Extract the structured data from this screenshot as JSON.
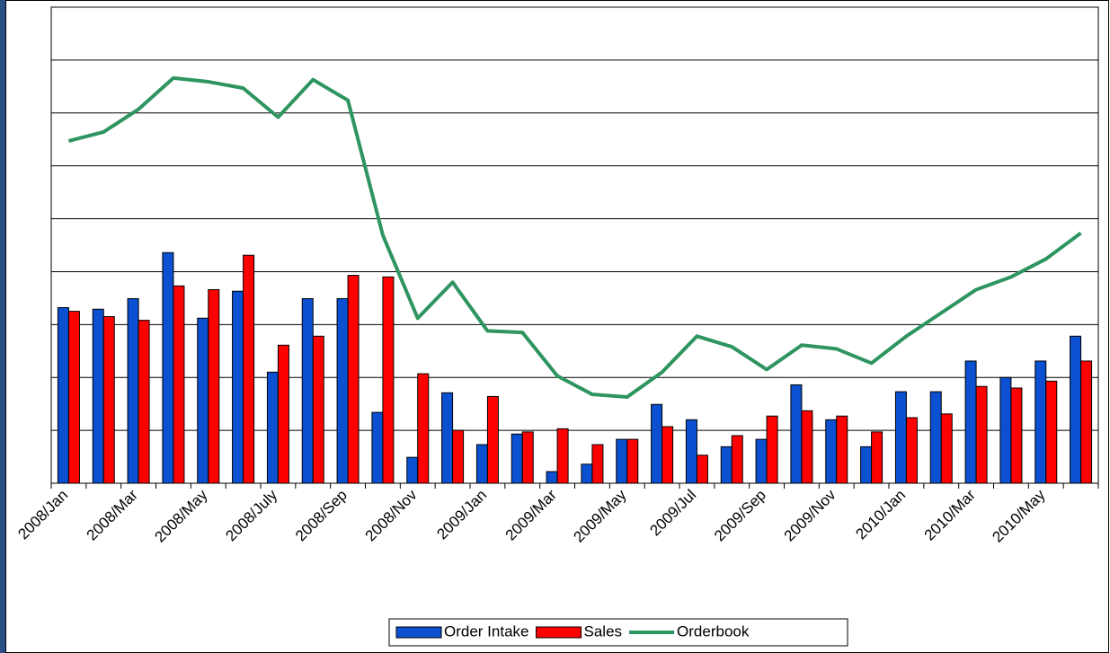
{
  "chart_data": {
    "type": "bar-line",
    "categories": [
      "2008/Jan",
      null,
      "2008/Mar",
      null,
      "2008/May",
      null,
      "2008/July",
      null,
      "2008/Sep",
      null,
      "2008/Nov",
      null,
      "2009/Jan",
      null,
      "2009/Mar",
      null,
      "2009/May",
      null,
      "2009/Jul",
      null,
      "2009/Sep",
      null,
      "2009/Nov",
      null,
      "2010/Jan",
      null,
      "2010/Mar",
      null,
      "2010/May",
      null
    ],
    "series": [
      {
        "name": "Order Intake",
        "kind": "bar",
        "color": "#0a50d0",
        "values": [
          3.32,
          3.29,
          3.49,
          4.36,
          3.12,
          3.63,
          2.1,
          3.49,
          3.49,
          1.34,
          0.49,
          1.71,
          0.73,
          0.93,
          0.22,
          0.36,
          0.83,
          1.49,
          1.2,
          0.69,
          0.83,
          1.86,
          1.2,
          0.69,
          1.73,
          1.73,
          2.31,
          2.0,
          2.31,
          2.78
        ]
      },
      {
        "name": "Sales",
        "kind": "bar",
        "color": "#ff0000",
        "values": [
          3.25,
          3.15,
          3.08,
          3.73,
          3.66,
          4.31,
          2.61,
          2.78,
          3.93,
          3.9,
          2.07,
          1.0,
          1.64,
          0.97,
          1.03,
          0.73,
          0.83,
          1.07,
          0.53,
          0.9,
          1.27,
          1.37,
          1.27,
          0.97,
          1.24,
          1.31,
          1.83,
          1.8,
          1.93,
          2.31
        ]
      },
      {
        "name": "Orderbook",
        "kind": "line",
        "color": "#2e9460",
        "values": [
          6.47,
          6.64,
          7.07,
          7.66,
          7.59,
          7.47,
          6.92,
          7.63,
          7.24,
          4.69,
          3.12,
          3.8,
          2.88,
          2.85,
          2.03,
          1.68,
          1.63,
          2.1,
          2.78,
          2.58,
          2.15,
          2.61,
          2.54,
          2.27,
          2.78,
          3.22,
          3.66,
          3.9,
          4.24,
          4.73
        ]
      }
    ],
    "ylim": [
      0,
      9
    ],
    "yticks": [
      0,
      1,
      2,
      3,
      4,
      5,
      6,
      7,
      8,
      9
    ],
    "grid": true,
    "legend": "bottom"
  }
}
